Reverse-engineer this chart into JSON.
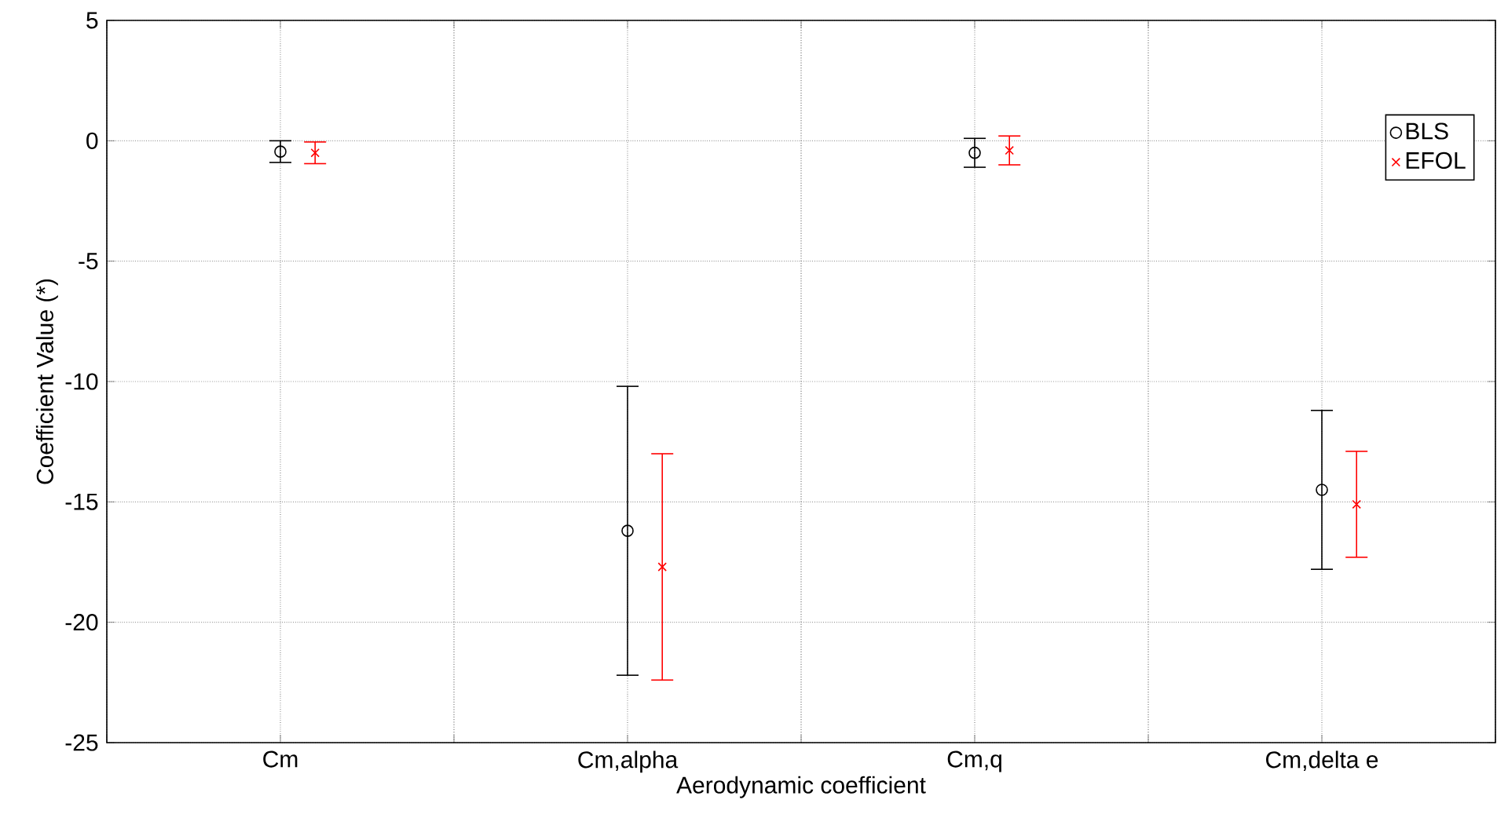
{
  "chart_data": {
    "type": "scatter",
    "xlabel": "Aerodynamic coefficient",
    "ylabel": "Coefficient Value (*)",
    "categories": [
      "Cm",
      "Cm,alpha",
      "Cm,q",
      "Cm,delta e"
    ],
    "series": [
      {
        "name": "BLS",
        "color": "#000000",
        "marker": "circle",
        "values": [
          -0.45,
          -16.2,
          -0.5,
          -14.5
        ],
        "errors": [
          0.45,
          6.0,
          0.6,
          3.3
        ]
      },
      {
        "name": "EFOL",
        "color": "#ff0000",
        "marker": "cross",
        "values": [
          -0.5,
          -17.7,
          -0.4,
          -15.1
        ],
        "errors": [
          0.45,
          4.7,
          0.6,
          2.2
        ]
      }
    ],
    "ylim": [
      -25,
      5
    ],
    "yticks": [
      -25,
      -20,
      -15,
      -10,
      -5,
      0,
      5
    ],
    "grid": true,
    "legend": "top right"
  }
}
